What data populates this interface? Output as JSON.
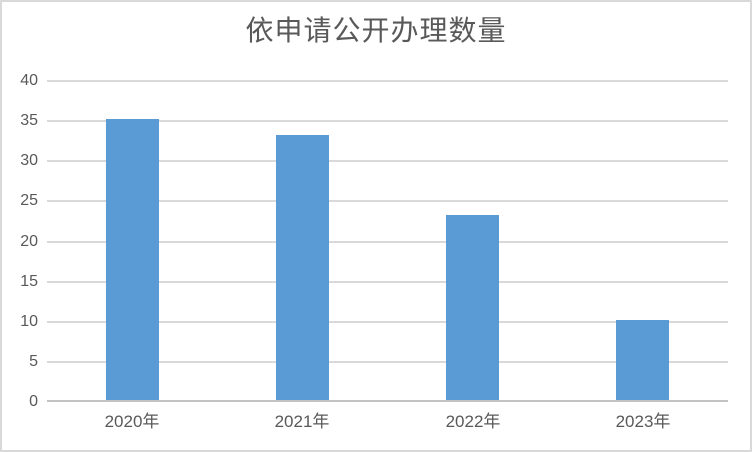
{
  "chart_data": {
    "type": "bar",
    "title": "依申请公开办理数量",
    "categories": [
      "2020年",
      "2021年",
      "2022年",
      "2023年"
    ],
    "values": [
      35,
      33,
      23,
      10
    ],
    "xlabel": "",
    "ylabel": "",
    "ylim": [
      0,
      40
    ],
    "yticks": [
      0,
      5,
      10,
      15,
      20,
      25,
      30,
      35,
      40
    ],
    "grid": true,
    "legend": false,
    "series_count": 1
  },
  "colors": {
    "bar": "#5B9BD5",
    "gridline": "#D9D9D9",
    "axis_line": "#C3C3C3",
    "text": "#595959",
    "border": "#D9D9D9",
    "background": "#FFFFFF"
  }
}
